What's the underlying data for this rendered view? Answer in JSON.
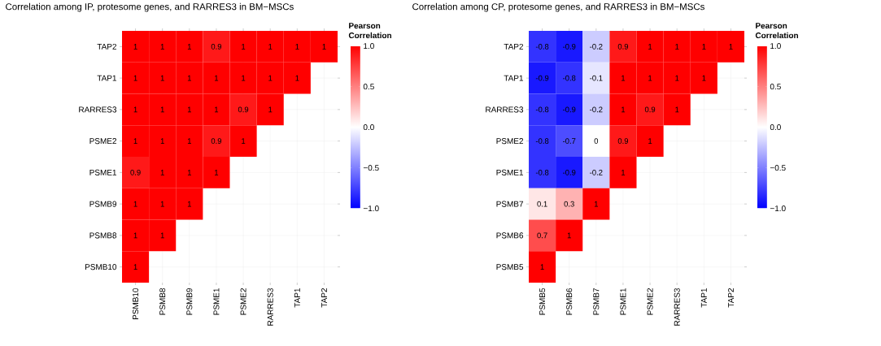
{
  "chart_data": [
    {
      "type": "heatmap",
      "title": "Correlation among IP, protesome genes, and RARRES3 in BM−MSCs",
      "clabel": "Pearson Correlation",
      "categories": [
        "PSMB10",
        "PSMB8",
        "PSMB9",
        "PSME1",
        "PSME2",
        "RARRES3",
        "TAP1",
        "TAP2"
      ],
      "y_categories": [
        "TAP2",
        "TAP1",
        "RARRES3",
        "PSME2",
        "PSME1",
        "PSMB9",
        "PSMB8",
        "PSMB10"
      ],
      "cells": [
        [
          1,
          1,
          1,
          0.9,
          1,
          1,
          1,
          1
        ],
        [
          1,
          1,
          1,
          1,
          1,
          1,
          1,
          null
        ],
        [
          1,
          1,
          1,
          1,
          0.9,
          1,
          null,
          null
        ],
        [
          1,
          1,
          1,
          0.9,
          1,
          null,
          null,
          null
        ],
        [
          0.9,
          1,
          1,
          1,
          null,
          null,
          null,
          null
        ],
        [
          1,
          1,
          1,
          null,
          null,
          null,
          null,
          null
        ],
        [
          1,
          1,
          null,
          null,
          null,
          null,
          null,
          null
        ],
        [
          1,
          null,
          null,
          null,
          null,
          null,
          null,
          null
        ]
      ],
      "clim": [
        -1,
        1
      ],
      "cticks": [
        {
          "value": -1,
          "label": "−1.0"
        },
        {
          "value": -0.5,
          "label": "−0.5"
        },
        {
          "value": 0,
          "label": "0.0"
        },
        {
          "value": 0.5,
          "label": "0.5"
        },
        {
          "value": 1,
          "label": "1.0"
        }
      ],
      "grid": true,
      "data_labels": true
    },
    {
      "type": "heatmap",
      "title": "Correlation among CP, protesome genes, and RARRES3 in BM−MSCs",
      "clabel": "Pearson Correlation",
      "categories": [
        "PSMB5",
        "PSMB6",
        "PSMB7",
        "PSME1",
        "PSME2",
        "RARRES3",
        "TAP1",
        "TAP2"
      ],
      "y_categories": [
        "TAP2",
        "TAP1",
        "RARRES3",
        "PSME2",
        "PSME1",
        "PSMB7",
        "PSMB6",
        "PSMB5"
      ],
      "cells": [
        [
          -0.8,
          -0.9,
          -0.2,
          0.9,
          1,
          1,
          1,
          1
        ],
        [
          -0.9,
          -0.8,
          -0.1,
          1,
          1,
          1,
          1,
          null
        ],
        [
          -0.8,
          -0.9,
          -0.2,
          1,
          0.9,
          1,
          null,
          null
        ],
        [
          -0.8,
          -0.7,
          0,
          0.9,
          1,
          null,
          null,
          null
        ],
        [
          -0.8,
          -0.9,
          -0.2,
          1,
          null,
          null,
          null,
          null
        ],
        [
          0.1,
          0.3,
          1,
          null,
          null,
          null,
          null,
          null
        ],
        [
          0.7,
          1,
          null,
          null,
          null,
          null,
          null,
          null
        ],
        [
          1,
          null,
          null,
          null,
          null,
          null,
          null,
          null
        ]
      ],
      "clim": [
        -1,
        1
      ],
      "cticks": [
        {
          "value": -1,
          "label": "−1.0"
        },
        {
          "value": -0.5,
          "label": "−0.5"
        },
        {
          "value": 0,
          "label": "0.0"
        },
        {
          "value": 0.5,
          "label": "0.5"
        },
        {
          "value": 1,
          "label": "1.0"
        }
      ],
      "grid": true,
      "data_labels": true
    }
  ]
}
